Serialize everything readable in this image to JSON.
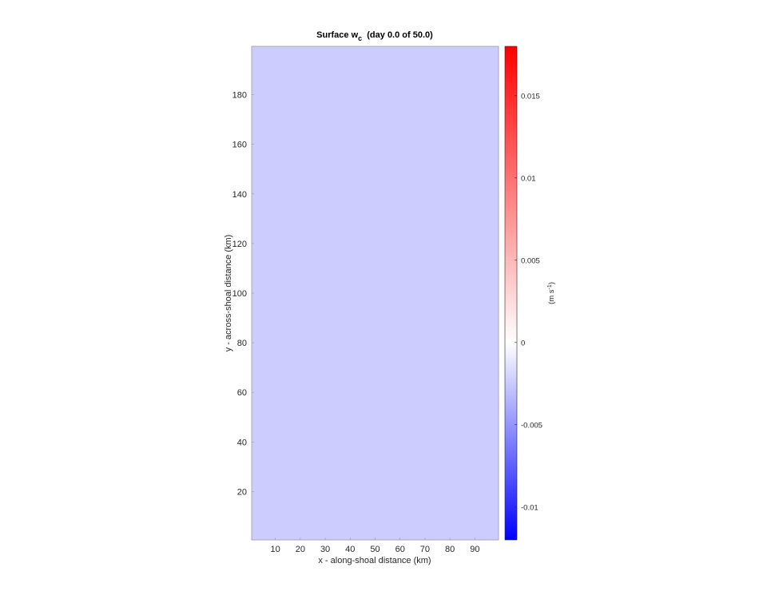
{
  "chart_data": {
    "type": "heatmap",
    "title": "Surface w",
    "title_subscript": "c",
    "title_suffix": "  (day 0.0 of 50.0)",
    "xlabel": "x - along-shoal distance (km)",
    "ylabel": "y - across-shoal distance (km)",
    "xlim": [
      0.5,
      99.5
    ],
    "ylim": [
      0.5,
      199.5
    ],
    "xticks": [
      10,
      20,
      30,
      40,
      50,
      60,
      70,
      80,
      90
    ],
    "yticks": [
      20,
      40,
      60,
      80,
      100,
      120,
      140,
      160,
      180
    ],
    "field_value": 0,
    "field_color": "#ccccff",
    "grid": false,
    "colorbar": {
      "label": "(m s",
      "label_superscript": "-1",
      "label_suffix": ")",
      "range": [
        -0.012,
        0.018
      ],
      "ticks": [
        -0.01,
        -0.005,
        0,
        0.005,
        0.01,
        0.015
      ],
      "tick_labels": [
        "-0.01",
        "-0.005",
        "0",
        "0.005",
        "0.01",
        "0.015"
      ],
      "colormap": "blue-white-red",
      "color_min": "#0000ff",
      "color_mid": "#ffffff",
      "color_max": "#ff0000"
    }
  }
}
